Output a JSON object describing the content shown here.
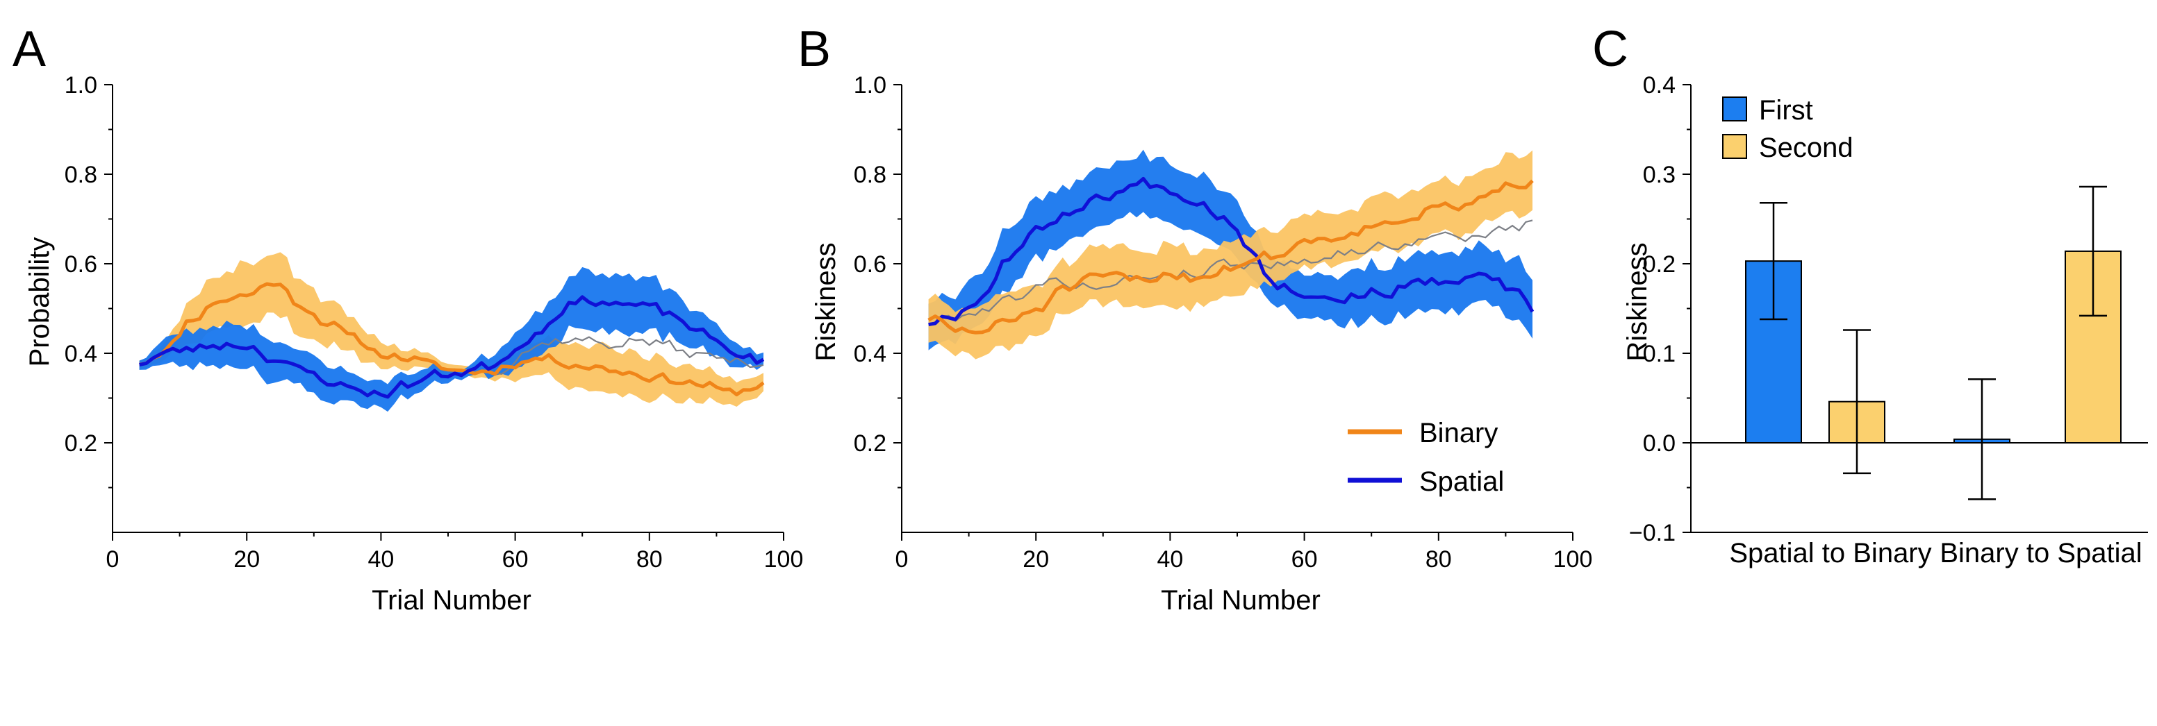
{
  "colors": {
    "binary_line": "#f08519",
    "binary_band": "#fbc463",
    "spatial_line": "#1010d6",
    "spatial_band": "#1877ee",
    "first_bar": "#1c7ef0",
    "second_bar": "#fbd06e",
    "gray_line": "#7c7f86"
  },
  "panels": {
    "A": {
      "letter": "A"
    },
    "B": {
      "letter": "B"
    },
    "C": {
      "letter": "C"
    }
  },
  "chart_data": [
    {
      "panel": "A",
      "type": "line",
      "xlabel": "Trial Number",
      "ylabel": "Probability",
      "xlim": [
        0,
        100
      ],
      "ylim": [
        0.0,
        1.0
      ],
      "xticks": [
        0,
        20,
        40,
        60,
        80,
        100
      ],
      "yticks": [
        0.2,
        0.4,
        0.6,
        0.8,
        1.0
      ],
      "ytick_labels": [
        "0.2",
        "0.4",
        "0.6",
        "0.8",
        "1.0"
      ],
      "x_start": 4,
      "x_end": 97,
      "series": [
        {
          "name": "Binary",
          "key_x": [
            4,
            8,
            12,
            16,
            20,
            24,
            28,
            32,
            36,
            40,
            44,
            48,
            52,
            56,
            60,
            64,
            68,
            72,
            76,
            80,
            84,
            88,
            92,
            95,
            97
          ],
          "key_y": [
            0.38,
            0.41,
            0.48,
            0.52,
            0.53,
            0.56,
            0.51,
            0.47,
            0.43,
            0.4,
            0.39,
            0.37,
            0.36,
            0.36,
            0.38,
            0.39,
            0.38,
            0.37,
            0.36,
            0.35,
            0.34,
            0.33,
            0.31,
            0.32,
            0.34
          ],
          "key_se": [
            0.01,
            0.02,
            0.05,
            0.06,
            0.07,
            0.07,
            0.06,
            0.05,
            0.04,
            0.03,
            0.02,
            0.015,
            0.01,
            0.015,
            0.03,
            0.04,
            0.05,
            0.05,
            0.05,
            0.05,
            0.04,
            0.035,
            0.03,
            0.025,
            0.02
          ],
          "noise": 0.018,
          "seed": 11
        },
        {
          "name": "Spatial",
          "key_x": [
            4,
            8,
            12,
            16,
            20,
            24,
            28,
            32,
            36,
            40,
            44,
            48,
            52,
            56,
            60,
            64,
            68,
            72,
            76,
            80,
            84,
            88,
            92,
            95,
            97
          ],
          "key_y": [
            0.38,
            0.4,
            0.41,
            0.42,
            0.42,
            0.39,
            0.36,
            0.34,
            0.32,
            0.31,
            0.33,
            0.35,
            0.36,
            0.37,
            0.41,
            0.46,
            0.51,
            0.52,
            0.51,
            0.5,
            0.48,
            0.44,
            0.41,
            0.39,
            0.38
          ],
          "key_se": [
            0.01,
            0.03,
            0.04,
            0.045,
            0.045,
            0.045,
            0.04,
            0.04,
            0.035,
            0.03,
            0.025,
            0.02,
            0.01,
            0.02,
            0.04,
            0.05,
            0.06,
            0.065,
            0.065,
            0.06,
            0.05,
            0.04,
            0.03,
            0.02,
            0.015
          ],
          "noise": 0.02,
          "seed": 23
        }
      ],
      "overlay": {
        "key_x": [
          54,
          58,
          62,
          66,
          70,
          74,
          78,
          82,
          86,
          90,
          94,
          97
        ],
        "key_y": [
          0.36,
          0.37,
          0.41,
          0.43,
          0.43,
          0.42,
          0.43,
          0.42,
          0.4,
          0.39,
          0.38,
          0.38
        ],
        "noise": 0.02,
        "seed": 37
      }
    },
    {
      "panel": "B",
      "type": "line",
      "xlabel": "Trial Number",
      "ylabel": "Riskiness",
      "xlim": [
        0,
        100
      ],
      "ylim": [
        0.0,
        1.0
      ],
      "xticks": [
        0,
        20,
        40,
        60,
        80,
        100
      ],
      "yticks": [
        0.2,
        0.4,
        0.6,
        0.8,
        1.0
      ],
      "ytick_labels": [
        "0.2",
        "0.4",
        "0.6",
        "0.8",
        "1.0"
      ],
      "x_start": 4,
      "x_end": 94,
      "legend": {
        "position": "lower-right",
        "entries": [
          {
            "label": "Binary",
            "color_key": "binary_line"
          },
          {
            "label": "Spatial",
            "color_key": "spatial_line"
          }
        ]
      },
      "series": [
        {
          "name": "Binary",
          "key_x": [
            4,
            8,
            12,
            16,
            20,
            24,
            28,
            32,
            36,
            40,
            44,
            48,
            52,
            56,
            60,
            64,
            68,
            72,
            76,
            80,
            84,
            88,
            92,
            94
          ],
          "key_y": [
            0.48,
            0.45,
            0.45,
            0.47,
            0.5,
            0.54,
            0.56,
            0.57,
            0.56,
            0.58,
            0.57,
            0.59,
            0.61,
            0.62,
            0.65,
            0.66,
            0.68,
            0.69,
            0.71,
            0.72,
            0.73,
            0.75,
            0.78,
            0.79
          ],
          "key_se": [
            0.05,
            0.05,
            0.06,
            0.06,
            0.06,
            0.06,
            0.065,
            0.065,
            0.065,
            0.065,
            0.06,
            0.06,
            0.06,
            0.06,
            0.06,
            0.06,
            0.06,
            0.06,
            0.06,
            0.06,
            0.06,
            0.06,
            0.065,
            0.07
          ],
          "noise": 0.022,
          "seed": 51
        },
        {
          "name": "Spatial",
          "key_x": [
            4,
            8,
            12,
            16,
            20,
            24,
            28,
            32,
            36,
            40,
            44,
            48,
            52,
            56,
            60,
            64,
            68,
            72,
            76,
            80,
            84,
            88,
            92,
            94
          ],
          "key_y": [
            0.47,
            0.49,
            0.53,
            0.62,
            0.67,
            0.71,
            0.74,
            0.76,
            0.78,
            0.77,
            0.74,
            0.71,
            0.64,
            0.55,
            0.54,
            0.52,
            0.53,
            0.54,
            0.55,
            0.56,
            0.56,
            0.57,
            0.53,
            0.48
          ],
          "key_se": [
            0.05,
            0.05,
            0.06,
            0.065,
            0.065,
            0.065,
            0.065,
            0.065,
            0.065,
            0.065,
            0.065,
            0.065,
            0.06,
            0.05,
            0.05,
            0.05,
            0.06,
            0.06,
            0.065,
            0.065,
            0.065,
            0.065,
            0.07,
            0.07
          ],
          "noise": 0.022,
          "seed": 67
        }
      ],
      "overlay": {
        "key_x": [
          4,
          8,
          12,
          16,
          20,
          24,
          28,
          32,
          36,
          40,
          44,
          48,
          52,
          56,
          60,
          64,
          68,
          72,
          76,
          80,
          84,
          88,
          92,
          94
        ],
        "key_y": [
          0.47,
          0.48,
          0.5,
          0.52,
          0.55,
          0.56,
          0.55,
          0.56,
          0.57,
          0.58,
          0.58,
          0.6,
          0.6,
          0.6,
          0.61,
          0.62,
          0.63,
          0.64,
          0.65,
          0.66,
          0.66,
          0.67,
          0.68,
          0.69
        ],
        "noise": 0.02,
        "seed": 79
      }
    },
    {
      "panel": "C",
      "type": "bar",
      "ylabel": "Riskiness",
      "ylim": [
        -0.1,
        0.4
      ],
      "yticks": [
        -0.1,
        0.0,
        0.1,
        0.2,
        0.3,
        0.4
      ],
      "ytick_labels": [
        "−0.1",
        "0.0",
        "0.1",
        "0.2",
        "0.3",
        "0.4"
      ],
      "categories": [
        "Spatial to Binary",
        "Binary to Spatial"
      ],
      "legend": {
        "position": "top-left",
        "entries": [
          {
            "label": "First",
            "color_key": "first_bar"
          },
          {
            "label": "Second",
            "color_key": "second_bar"
          }
        ]
      },
      "series": [
        {
          "name": "First",
          "values": [
            0.203,
            0.004
          ],
          "errors": [
            0.065,
            0.067
          ]
        },
        {
          "name": "Second",
          "values": [
            0.046,
            0.214
          ],
          "errors": [
            0.08,
            0.072
          ]
        }
      ]
    }
  ]
}
